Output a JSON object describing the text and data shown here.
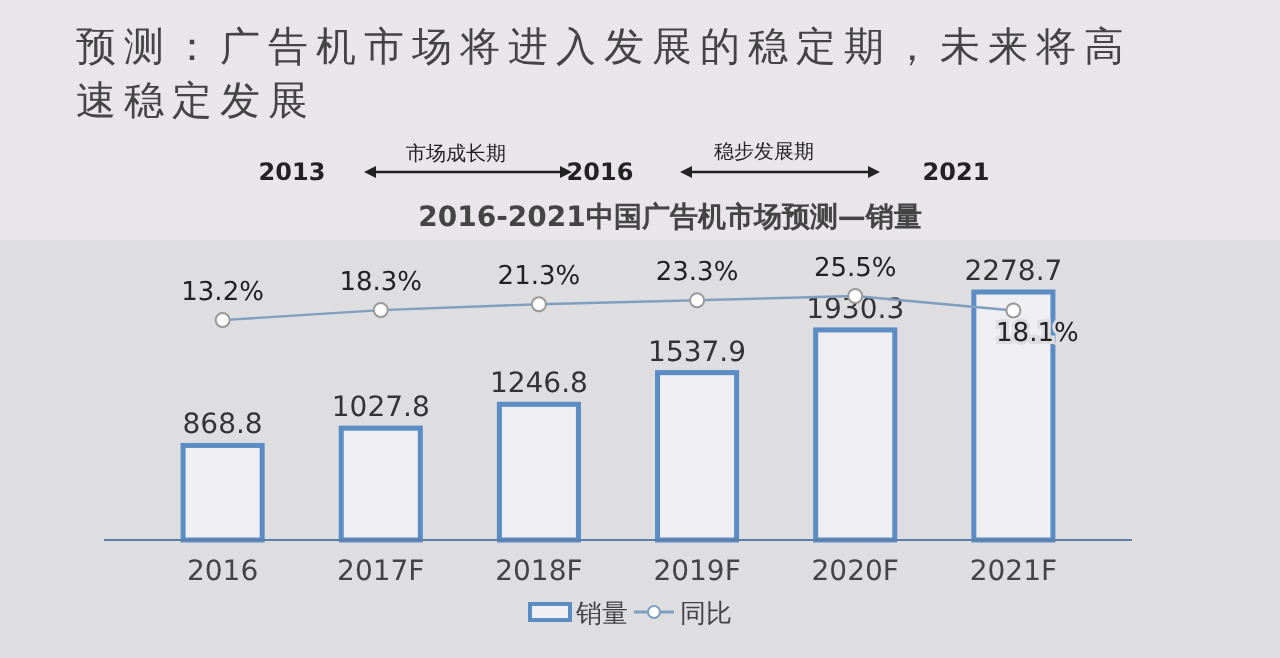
{
  "chart_data": {
    "type": "bar",
    "title": "预测：广告机市场将进入发展的稳定期，未来将高速稳定发展",
    "subtitle": "2016-2021中国广告机市场预测—销量",
    "annotations": [
      "2013",
      "市场成长期",
      "2016",
      "稳步发展期",
      "2021"
    ],
    "categories": [
      "2016",
      "2017F",
      "2018F",
      "2019F",
      "2020F",
      "2021F"
    ],
    "series": [
      {
        "name": "销量",
        "color": "#5b8cc4",
        "values": [
          868.8,
          1027.8,
          1246.8,
          1537.9,
          1930.3,
          2278.7
        ],
        "value_labels": [
          "868.8",
          "1027.8",
          "1246.8",
          "1537.9",
          "1930.3",
          "2278.7"
        ]
      },
      {
        "name": "同比",
        "type": "line",
        "axis": "y2",
        "color": "#7f9fbf",
        "marker": "circle",
        "values": [
          13.2,
          18.3,
          21.3,
          23.3,
          25.5,
          18.1
        ],
        "value_labels": [
          "13.2%",
          "18.3%",
          "21.3%",
          "23.3%",
          "25.5%",
          "18.1%"
        ]
      }
    ],
    "tick_labels": "x",
    "legend": "bottom"
  }
}
